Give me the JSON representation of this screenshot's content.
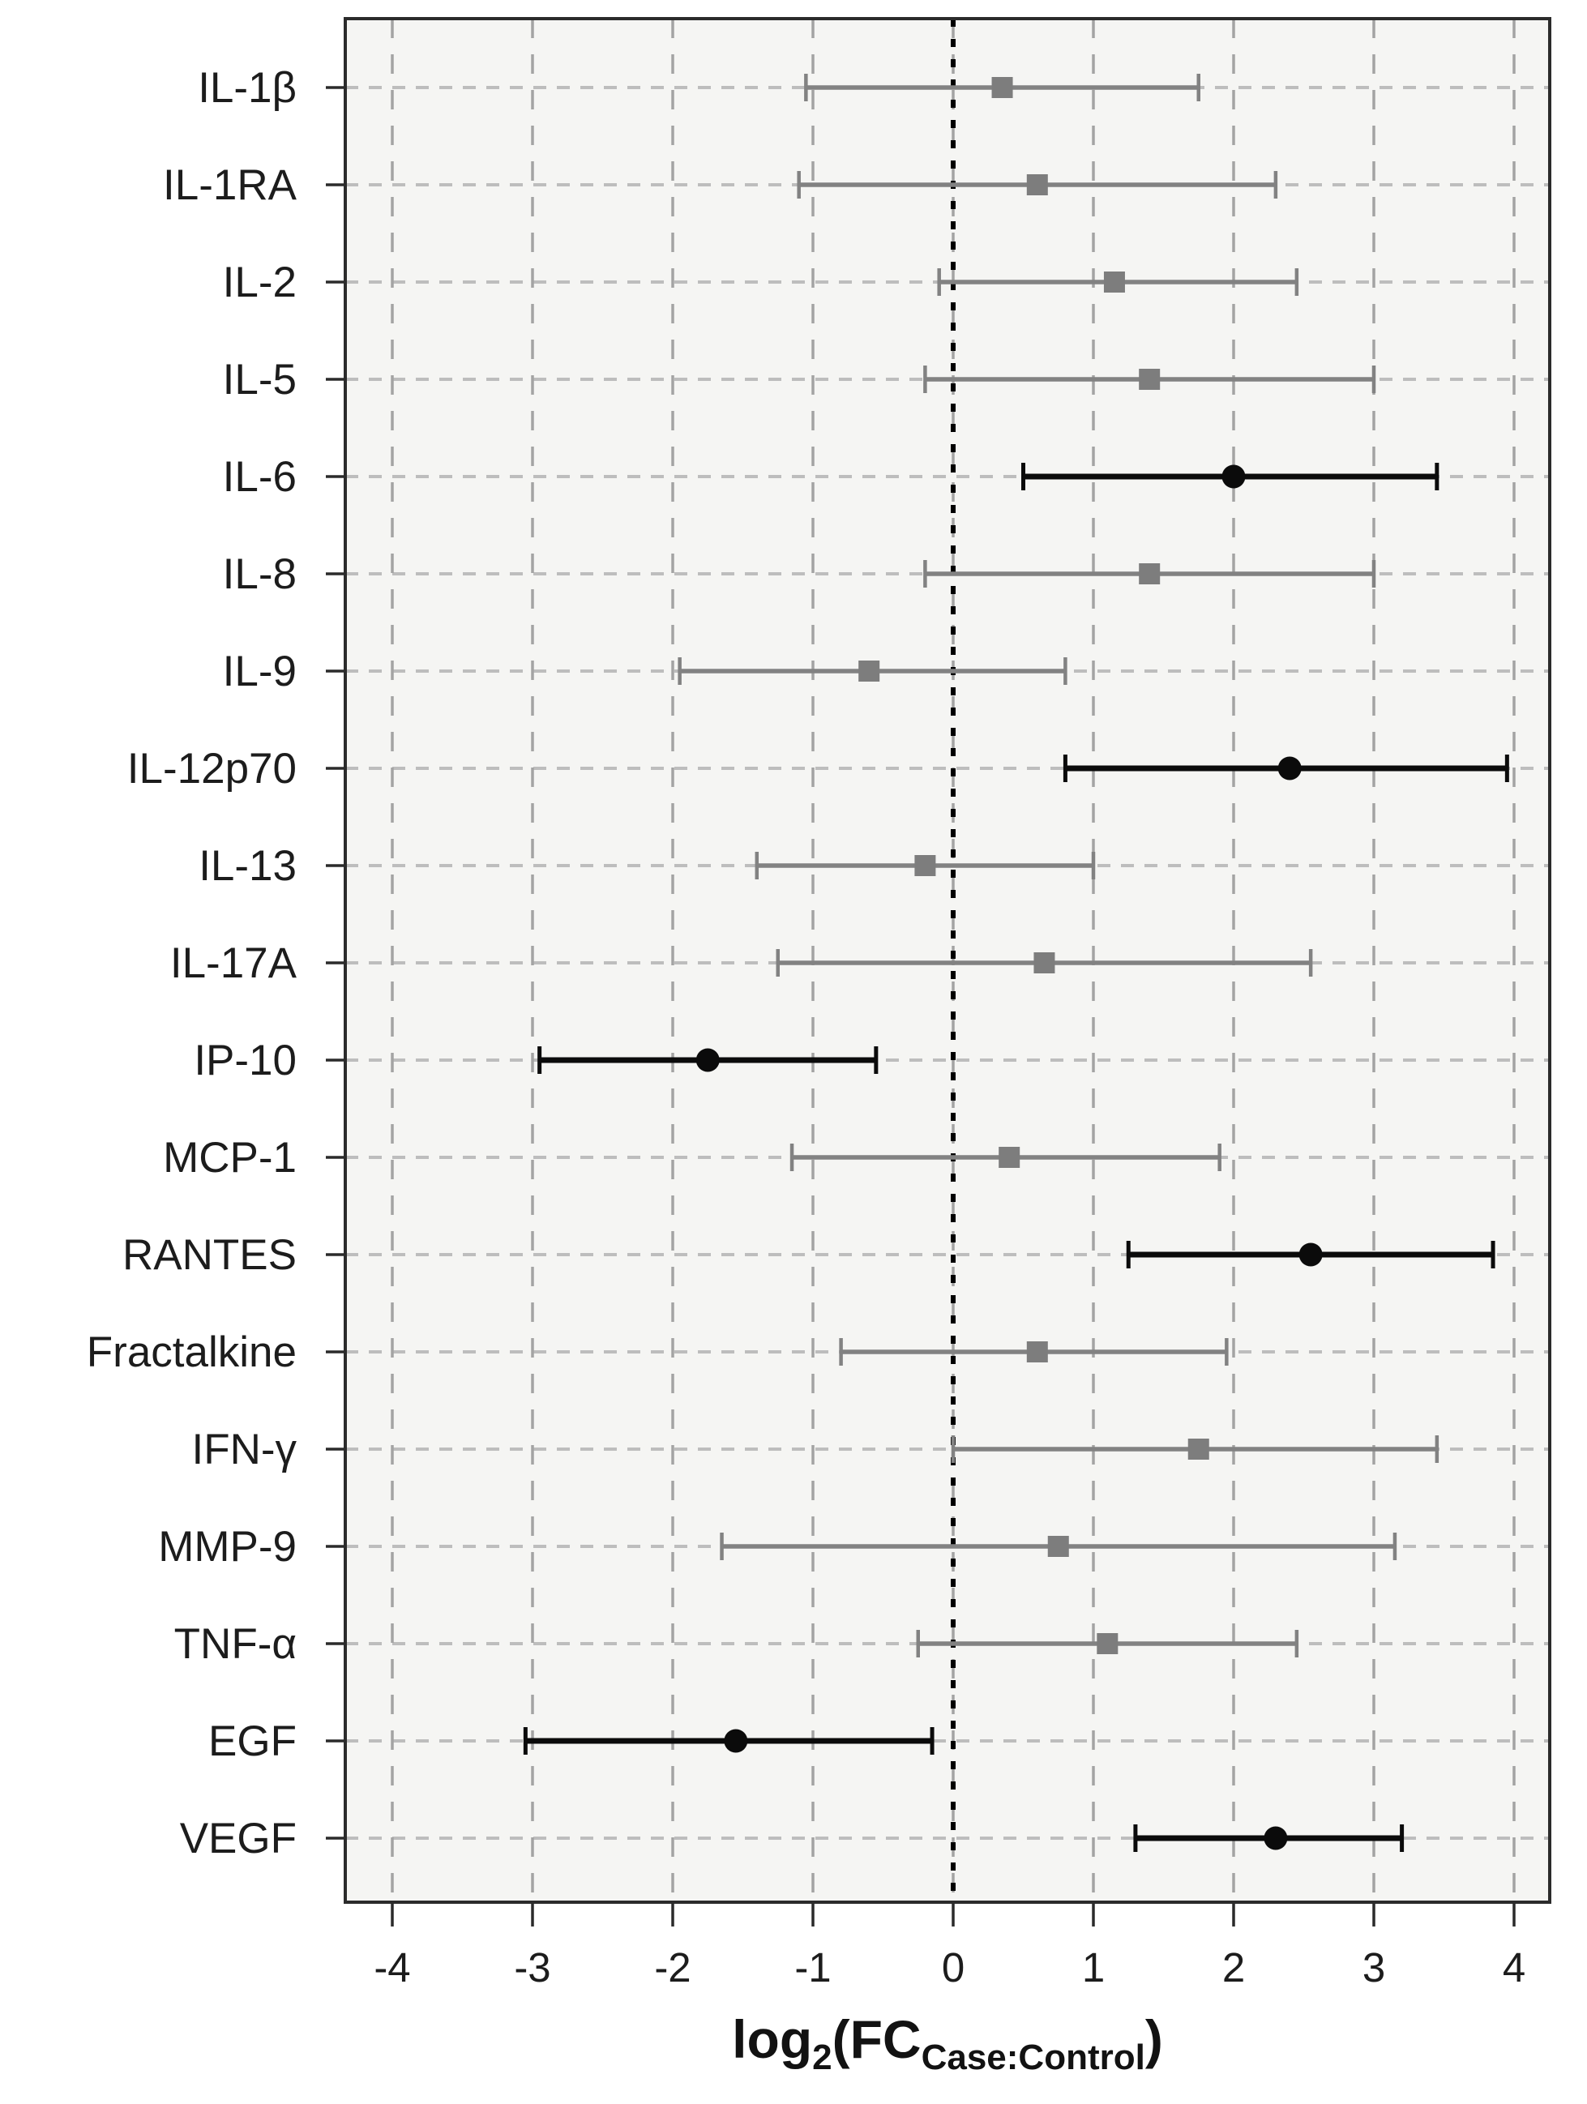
{
  "figure": {
    "x_axis_title_parts": {
      "prefix": "log",
      "sub1": "2",
      "mid": "(FC",
      "sub2": "Case:Control",
      "suffix": ")"
    }
  },
  "chart_data": {
    "type": "scatter",
    "subtype": "forest-plot",
    "title": "",
    "xlabel": "log2(FC Case:Control)",
    "ylabel": "",
    "xlim": [
      -4.34,
      4.26
    ],
    "x_ticks": [
      -4,
      -3,
      -2,
      -1,
      0,
      1,
      2,
      3,
      4
    ],
    "x_tick_labels": [
      "-4",
      "-3",
      "-2",
      "-1",
      "0",
      "1",
      "2",
      "3",
      "4"
    ],
    "reference_line_x": 0,
    "grid": true,
    "legend_position": "none",
    "rows": [
      {
        "label": "IL-1β",
        "estimate": 0.35,
        "ci_low": -1.05,
        "ci_high": 1.75,
        "significant": false
      },
      {
        "label": "IL-1RA",
        "estimate": 0.6,
        "ci_low": -1.1,
        "ci_high": 2.3,
        "significant": false
      },
      {
        "label": "IL-2",
        "estimate": 1.15,
        "ci_low": -0.1,
        "ci_high": 2.45,
        "significant": false
      },
      {
        "label": "IL-5",
        "estimate": 1.4,
        "ci_low": -0.2,
        "ci_high": 3.0,
        "significant": false
      },
      {
        "label": "IL-6",
        "estimate": 2.0,
        "ci_low": 0.5,
        "ci_high": 3.45,
        "significant": true
      },
      {
        "label": "IL-8",
        "estimate": 1.4,
        "ci_low": -0.2,
        "ci_high": 3.0,
        "significant": false
      },
      {
        "label": "IL-9",
        "estimate": -0.6,
        "ci_low": -1.95,
        "ci_high": 0.8,
        "significant": false
      },
      {
        "label": "IL-12p70",
        "estimate": 2.4,
        "ci_low": 0.8,
        "ci_high": 3.95,
        "significant": true
      },
      {
        "label": "IL-13",
        "estimate": -0.2,
        "ci_low": -1.4,
        "ci_high": 1.0,
        "significant": false
      },
      {
        "label": "IL-17A",
        "estimate": 0.65,
        "ci_low": -1.25,
        "ci_high": 2.55,
        "significant": false
      },
      {
        "label": "IP-10",
        "estimate": -1.75,
        "ci_low": -2.95,
        "ci_high": -0.55,
        "significant": true
      },
      {
        "label": "MCP-1",
        "estimate": 0.4,
        "ci_low": -1.15,
        "ci_high": 1.9,
        "significant": false
      },
      {
        "label": "RANTES",
        "estimate": 2.55,
        "ci_low": 1.25,
        "ci_high": 3.85,
        "significant": true
      },
      {
        "label": "Fractalkine",
        "estimate": 0.6,
        "ci_low": -0.8,
        "ci_high": 1.95,
        "significant": false
      },
      {
        "label": "IFN-γ",
        "estimate": 1.75,
        "ci_low": 0.0,
        "ci_high": 3.45,
        "significant": false
      },
      {
        "label": "MMP-9",
        "estimate": 0.75,
        "ci_low": -1.65,
        "ci_high": 3.15,
        "significant": false
      },
      {
        "label": "TNF-α",
        "estimate": 1.1,
        "ci_low": -0.25,
        "ci_high": 2.45,
        "significant": false
      },
      {
        "label": "EGF",
        "estimate": -1.55,
        "ci_low": -3.05,
        "ci_high": -0.15,
        "significant": true
      },
      {
        "label": "VEGF",
        "estimate": 2.3,
        "ci_low": 1.3,
        "ci_high": 3.2,
        "significant": true
      }
    ],
    "marker_legend": {
      "nonsignificant": "gray square",
      "significant": "black circle"
    },
    "colors": {
      "panel_background": "#f5f5f3",
      "outer_background": "#ffffff",
      "box_border": "#2b2b2b",
      "gray_series": "#828282",
      "black_series": "#0b0b0b",
      "vertical_grid": "#a3a3a3",
      "horizontal_grid": "#bdbdbd",
      "reference_line": "#000000",
      "text": "#1c1c1c"
    }
  }
}
